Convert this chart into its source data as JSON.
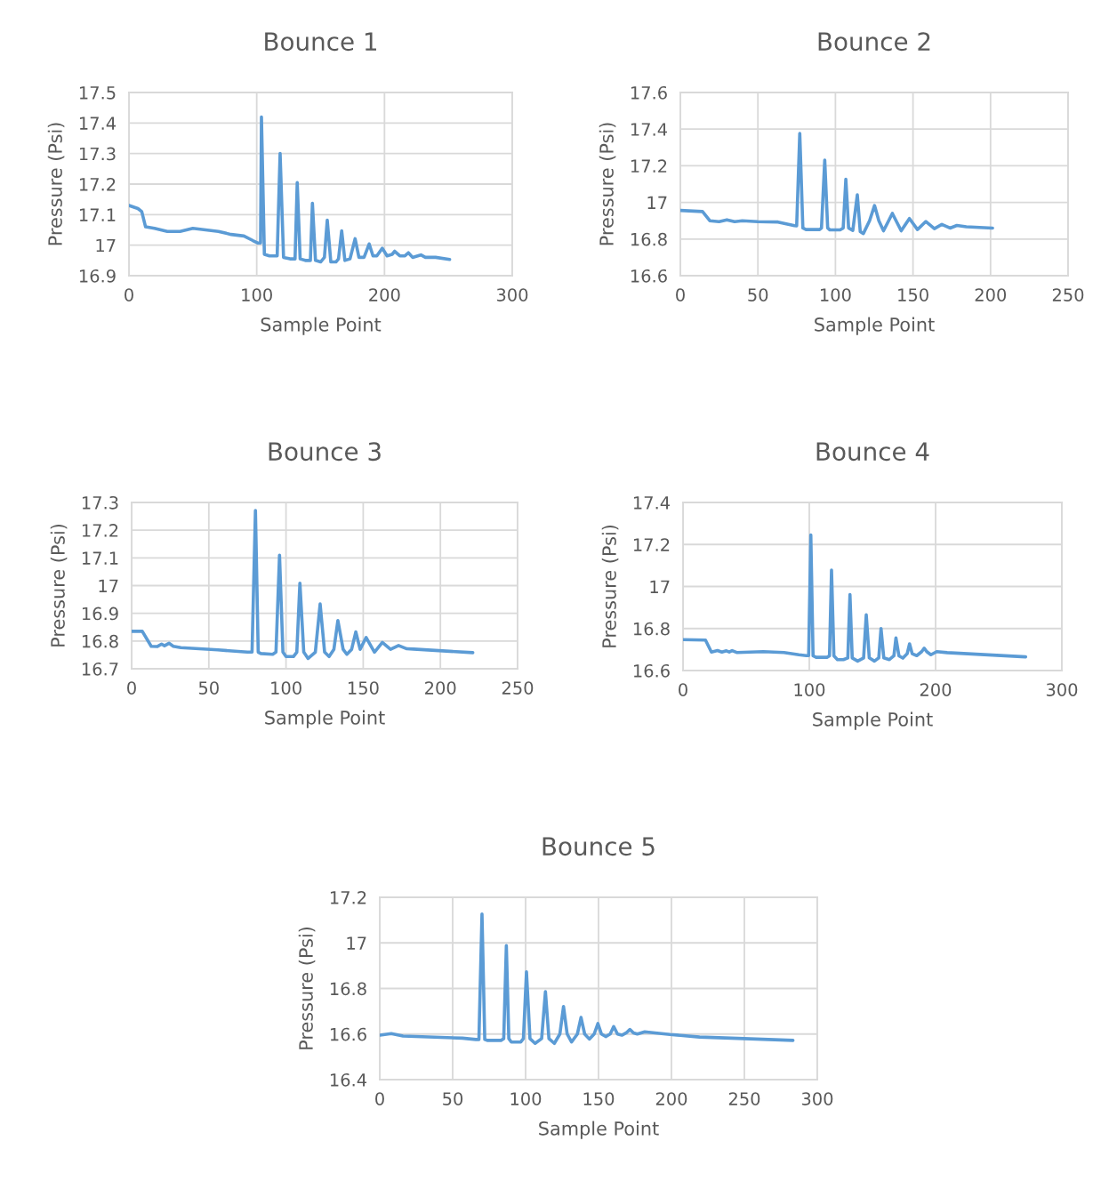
{
  "chart_data": [
    {
      "type": "line",
      "title": "Bounce 1",
      "xlabel": "Sample Point",
      "ylabel": "Pressure (Psi)",
      "xlim": [
        0,
        300
      ],
      "xticks": [
        0,
        100,
        200,
        300
      ],
      "ylim": [
        16.9,
        17.5
      ],
      "yticks": [
        16.9,
        17,
        17.1,
        17.2,
        17.3,
        17.4,
        17.5
      ],
      "grid": true,
      "marker": "none",
      "line_style": "solid",
      "series": [
        {
          "color": "#5b9bd5",
          "x": [
            0,
            7,
            10,
            13,
            20,
            30,
            40,
            50,
            60,
            70,
            80,
            90,
            97,
            101,
            103,
            103.7,
            106,
            110,
            116,
            118.3,
            121,
            126,
            130,
            131.7,
            134,
            138,
            142,
            143.6,
            146,
            150,
            153,
            155.2,
            158,
            162,
            164,
            166.5,
            169,
            173,
            177,
            180,
            184,
            188,
            191,
            194,
            198.3,
            202,
            206,
            208,
            212,
            216,
            218.7,
            222,
            226,
            228.5,
            232,
            240,
            251
          ],
          "values": [
            17.13,
            17.12,
            17.11,
            17.06,
            17.055,
            17.045,
            17.045,
            17.055,
            17.05,
            17.045,
            17.035,
            17.03,
            17.015,
            17.007,
            17.007,
            17.42,
            16.97,
            16.965,
            16.965,
            17.3,
            16.96,
            16.955,
            16.955,
            17.205,
            16.955,
            16.95,
            16.95,
            17.137,
            16.95,
            16.945,
            16.96,
            17.082,
            16.945,
            16.945,
            16.955,
            17.047,
            16.95,
            16.955,
            17.021,
            16.96,
            16.96,
            17.004,
            16.965,
            16.965,
            16.99,
            16.965,
            16.97,
            16.98,
            16.965,
            16.965,
            16.975,
            16.96,
            16.965,
            16.968,
            16.96,
            16.96,
            16.953
          ]
        }
      ]
    },
    {
      "type": "line",
      "title": "Bounce 2",
      "xlabel": "Sample Point",
      "ylabel": "Pressure (Psi)",
      "xlim": [
        0,
        250
      ],
      "xticks": [
        0,
        50,
        100,
        150,
        200,
        250
      ],
      "ylim": [
        16.6,
        17.6
      ],
      "yticks": [
        16.6,
        16.8,
        17,
        17.2,
        17.4,
        17.6
      ],
      "grid": true,
      "marker": "none",
      "line_style": "solid",
      "series": [
        {
          "color": "#5b9bd5",
          "x": [
            0,
            14.3,
            19,
            25,
            30,
            35,
            40,
            50,
            63,
            73.6,
            75,
            77,
            79,
            81,
            89.8,
            91,
            93.1,
            95,
            96.4,
            103,
            105,
            106.7,
            108.5,
            111.2,
            114.1,
            116,
            118,
            122,
            125.2,
            128,
            131,
            136.7,
            142.4,
            147.7,
            152.9,
            158.3,
            163.8,
            168.6,
            173.9,
            178.3,
            184.4,
            201.3
          ],
          "values": [
            16.956,
            16.95,
            16.9,
            16.895,
            16.905,
            16.895,
            16.9,
            16.895,
            16.893,
            16.873,
            16.872,
            17.377,
            16.86,
            16.852,
            16.852,
            16.86,
            17.231,
            16.86,
            16.85,
            16.85,
            16.86,
            17.126,
            16.86,
            16.847,
            17.041,
            16.84,
            16.83,
            16.9,
            16.983,
            16.9,
            16.845,
            16.94,
            16.845,
            16.912,
            16.852,
            16.896,
            16.857,
            16.88,
            16.86,
            16.874,
            16.867,
            16.86
          ]
        }
      ]
    },
    {
      "type": "line",
      "title": "Bounce 3",
      "xlabel": "Sample Point",
      "ylabel": "Pressure (Psi)",
      "xlim": [
        0,
        250
      ],
      "xticks": [
        0,
        50,
        100,
        150,
        200,
        250
      ],
      "ylim": [
        16.7,
        17.3
      ],
      "yticks": [
        16.7,
        16.8,
        16.9,
        17,
        17.1,
        17.2,
        17.3
      ],
      "grid": true,
      "marker": "none",
      "line_style": "solid",
      "series": [
        {
          "color": "#5b9bd5",
          "x": [
            0,
            6.9,
            12.7,
            16.5,
            19.4,
            21.3,
            24.2,
            27,
            31.9,
            55.9,
            75,
            78,
            80.2,
            82,
            83.7,
            91.4,
            93.5,
            95.8,
            98,
            100,
            104.8,
            107,
            109,
            111.5,
            114.3,
            119,
            122.1,
            125,
            127.9,
            131,
            133.6,
            137,
            139.4,
            142.5,
            145.2,
            148,
            151.9,
            157.3,
            162.4,
            167.7,
            172.9,
            178.3,
            182.6,
            221
          ],
          "values": [
            16.835,
            16.835,
            16.781,
            16.78,
            16.789,
            16.783,
            16.792,
            16.781,
            16.776,
            16.768,
            16.76,
            16.76,
            17.271,
            16.76,
            16.755,
            16.752,
            16.76,
            17.11,
            16.76,
            16.744,
            16.744,
            16.76,
            17.009,
            16.76,
            16.737,
            16.76,
            16.934,
            16.76,
            16.744,
            16.77,
            16.874,
            16.77,
            16.752,
            16.77,
            16.833,
            16.77,
            16.813,
            16.76,
            16.795,
            16.77,
            16.784,
            16.772,
            16.771,
            16.758
          ]
        }
      ]
    },
    {
      "type": "line",
      "title": "Bounce 4",
      "xlabel": "Sample Point",
      "ylabel": "Pressure (Psi)",
      "xlim": [
        0,
        300
      ],
      "xticks": [
        0,
        100,
        200,
        300
      ],
      "ylim": [
        16.6,
        17.4
      ],
      "yticks": [
        16.6,
        16.8,
        17,
        17.2,
        17.4
      ],
      "grid": true,
      "marker": "none",
      "line_style": "solid",
      "series": [
        {
          "color": "#5b9bd5",
          "x": [
            0,
            17.8,
            22.5,
            27.3,
            30.8,
            34.3,
            36.6,
            38.9,
            42.5,
            63.6,
            80,
            91.8,
            97.7,
            99.5,
            101.2,
            103,
            105.4,
            114,
            116,
            117.6,
            119.5,
            122.3,
            127,
            130.5,
            132.2,
            134,
            138.3,
            143,
            145.1,
            147.5,
            151.6,
            155,
            156.8,
            159,
            163.4,
            167,
            168.6,
            171,
            174.1,
            177.5,
            179.4,
            181.5,
            185.1,
            189,
            191,
            193,
            196.3,
            200.9,
            209.2,
            271.3
          ],
          "values": [
            16.747,
            16.745,
            16.688,
            16.695,
            16.688,
            16.694,
            16.688,
            16.695,
            16.686,
            16.69,
            16.686,
            16.675,
            16.671,
            16.671,
            17.245,
            16.67,
            16.663,
            16.663,
            16.67,
            17.078,
            16.67,
            16.652,
            16.652,
            16.66,
            16.962,
            16.66,
            16.645,
            16.66,
            16.865,
            16.66,
            16.645,
            16.66,
            16.8,
            16.66,
            16.652,
            16.67,
            16.755,
            16.67,
            16.659,
            16.68,
            16.727,
            16.68,
            16.671,
            16.69,
            16.706,
            16.69,
            16.675,
            16.69,
            16.685,
            16.665
          ]
        }
      ]
    },
    {
      "type": "line",
      "title": "Bounce 5",
      "xlabel": "Sample Point",
      "ylabel": "Pressure (Psi)",
      "xlim": [
        0,
        300
      ],
      "xticks": [
        0,
        50,
        100,
        150,
        200,
        250,
        300
      ],
      "ylim": [
        16.4,
        17.2
      ],
      "yticks": [
        16.4,
        16.6,
        16.8,
        17,
        17.2
      ],
      "grid": true,
      "marker": "none",
      "line_style": "solid",
      "series": [
        {
          "color": "#5b9bd5",
          "x": [
            0.2,
            7.9,
            16,
            56.7,
            65.9,
            68,
            70.1,
            72,
            74,
            83.1,
            85,
            86.8,
            88.5,
            90.2,
            96.7,
            98.5,
            100.6,
            103,
            106.5,
            111,
            113.6,
            116,
            119.7,
            123.5,
            126,
            128.5,
            131.5,
            135.5,
            138,
            140.5,
            143.7,
            147,
            149.6,
            152,
            154.9,
            158,
            160.4,
            163,
            166,
            169,
            171.5,
            174,
            176.6,
            181.7,
            188.8,
            199,
            219.3,
            249.8,
            283.3
          ],
          "values": [
            16.595,
            16.602,
            16.591,
            16.582,
            16.576,
            16.576,
            17.127,
            16.576,
            16.572,
            16.572,
            16.58,
            16.988,
            16.58,
            16.565,
            16.565,
            16.58,
            16.873,
            16.58,
            16.559,
            16.58,
            16.786,
            16.58,
            16.559,
            16.6,
            16.721,
            16.6,
            16.565,
            16.6,
            16.673,
            16.6,
            16.578,
            16.6,
            16.646,
            16.6,
            16.589,
            16.6,
            16.633,
            16.6,
            16.595,
            16.605,
            16.62,
            16.605,
            16.6,
            16.61,
            16.605,
            16.598,
            16.587,
            16.58,
            16.572
          ]
        }
      ]
    }
  ]
}
